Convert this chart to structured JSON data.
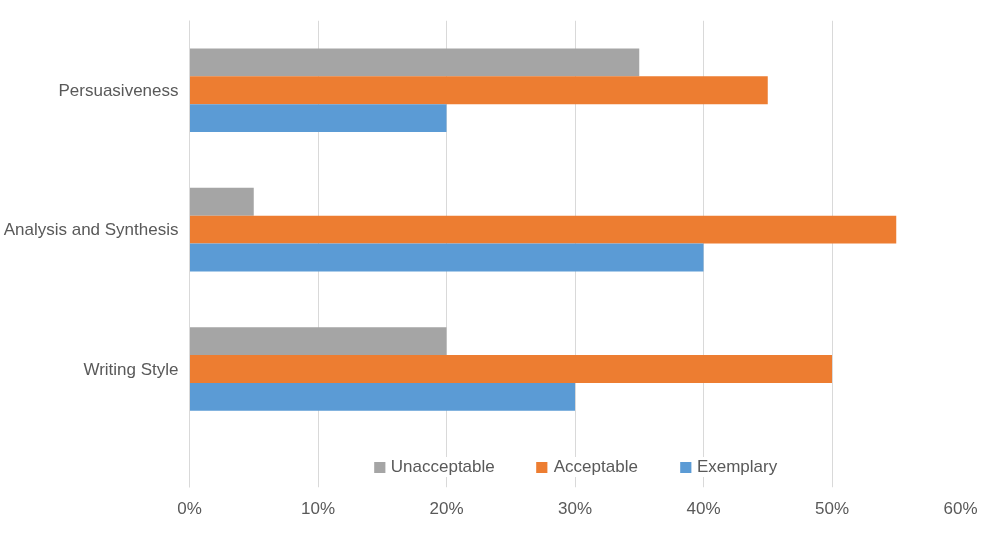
{
  "chart_data": {
    "type": "bar",
    "orientation": "horizontal",
    "categories": [
      "Persuasiveness",
      "Analysis and Synthesis",
      "Writing Style"
    ],
    "series": [
      {
        "name": "Unacceptable",
        "color": "#a5a5a5",
        "values": [
          35,
          5,
          20
        ]
      },
      {
        "name": "Acceptable",
        "color": "#ed7d31",
        "values": [
          45,
          55,
          50
        ]
      },
      {
        "name": "Exemplary",
        "color": "#5b9bd5",
        "values": [
          20,
          40,
          30
        ]
      }
    ],
    "xlim": [
      0,
      60
    ],
    "xticks": [
      {
        "value": 0,
        "label": "0%"
      },
      {
        "value": 10,
        "label": "10%"
      },
      {
        "value": 20,
        "label": "20%"
      },
      {
        "value": 30,
        "label": "30%"
      },
      {
        "value": 40,
        "label": "40%"
      },
      {
        "value": 50,
        "label": "50%"
      },
      {
        "value": 60,
        "label": "60%"
      }
    ],
    "grid": "x",
    "legend": "bottom"
  }
}
